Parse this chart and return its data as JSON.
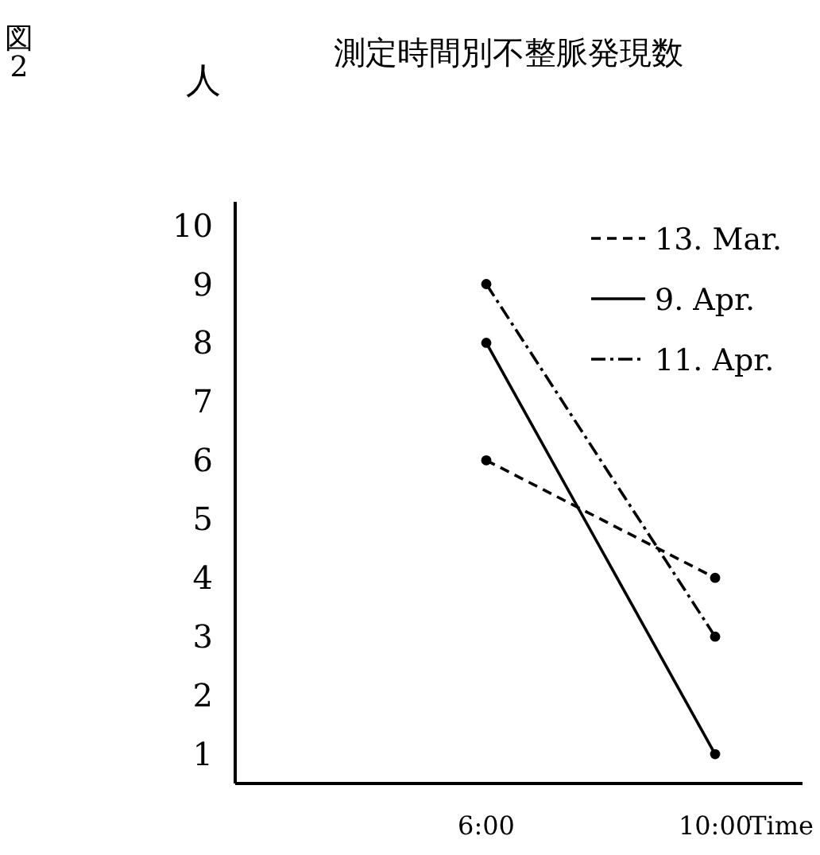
{
  "chart_data": {
    "type": "line",
    "title": "測定時間別不整脈発現数",
    "ylabel": "人",
    "xlabel": "Time",
    "annotations": [
      "図\n2"
    ],
    "categories": [
      "6:00",
      "10:00"
    ],
    "ylim": [
      0.5,
      10.4
    ],
    "yticks": [
      1,
      2,
      3,
      4,
      5,
      6,
      7,
      8,
      9,
      10
    ],
    "grid": false,
    "legend": "top right",
    "marker": "circle",
    "series": [
      {
        "name": "13. Mar.",
        "color": "#000000",
        "line_style": "dashed",
        "values": [
          6,
          4
        ]
      },
      {
        "name": "9.  Apr.",
        "color": "#000000",
        "line_style": "solid",
        "values": [
          8,
          1
        ]
      },
      {
        "name": "11. Apr.",
        "color": "#000000",
        "line_style": "dashdot",
        "values": [
          9,
          3
        ]
      }
    ]
  }
}
